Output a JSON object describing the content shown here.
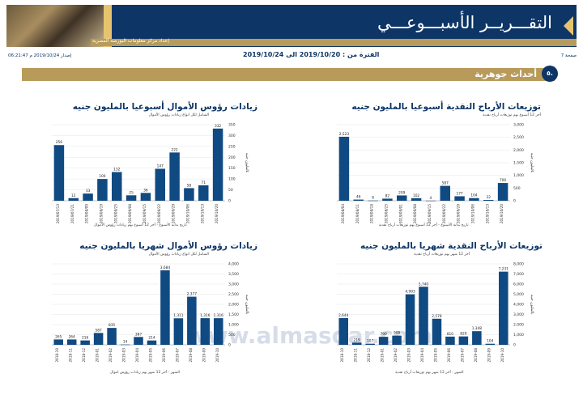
{
  "header": {
    "title": "التقـــريــر الأسبـــوعـــي",
    "subtitle": "إعداد مركز معلومات البورصة المصرية",
    "page_label": "صفحة 7",
    "period": "الفترة من : 2019/10/20 الى 2019/10/24",
    "issued": "إصدار 2019/10/24 م 06:21:47"
  },
  "section": {
    "number": "٥.",
    "title": "أحداث جوهرية"
  },
  "watermark": {
    "url": "www.almasdar.com"
  },
  "colors": {
    "navy": "#0d3566",
    "gold": "#b89b5a",
    "bar": "#104a82"
  },
  "chart_data": [
    {
      "id": "weekly-dividends",
      "type": "bar",
      "title": "توزيعات الأرباح النقدية أسبوعيا بالمليون جنيه",
      "subtitle": "آخر 12 أسبوع بهم توزيعات أرباح نقدية",
      "xlabel": "تاريخ بداية الأسبوع - آخر 12 أسبوع بهم توزيعات أرباح نقدية",
      "ylabel": "بالمليون جنيه",
      "ylim": [
        0,
        3000
      ],
      "yticks": [
        "0",
        "500",
        "1,000",
        "1,500",
        "2,000",
        "2,500",
        "3,000"
      ],
      "categories": [
        "2019/08/04",
        "2019/08/11",
        "2019/08/18",
        "2019/08/25",
        "2019/09/01",
        "2019/09/08",
        "2019/09/15",
        "2019/09/22",
        "2019/09/29",
        "2019/10/06",
        "2019/10/13",
        "2019/10/20"
      ],
      "values": [
        2523,
        46,
        8,
        82,
        209,
        102,
        4,
        587,
        177,
        104,
        32,
        700
      ],
      "labels": [
        "2,523",
        "46",
        "8",
        "82",
        "209",
        "102",
        "4",
        "587",
        "177",
        "104",
        "32",
        "700"
      ]
    },
    {
      "id": "weekly-capital",
      "type": "bar",
      "title": "زيادات رؤوس الأموال أسبوعيا بالمليون جنيه",
      "subtitle": "الشامل لكل انواع زيادات رؤوس الأموال",
      "xlabel": "تاريخ بداية الأسبوع - آخر 12 أسبوع بهم زيادات رؤوس الأموال",
      "ylabel": "بالمليون جنيه",
      "ylim": [
        0,
        350
      ],
      "yticks": [
        "0",
        "50",
        "100",
        "150",
        "200",
        "250",
        "300",
        "350"
      ],
      "categories": [
        "2019/07/13",
        "2019/07/21",
        "2019/08/09",
        "2019/08/19",
        "2019/08/25",
        "2019/09/08",
        "2019/09/15",
        "2019/09/22",
        "2019/09/29",
        "2019/10/06",
        "2019/10/13",
        "2019/10/20"
      ],
      "values": [
        256,
        12,
        33,
        100,
        132,
        25,
        36,
        147,
        222,
        58,
        71,
        332
      ],
      "labels": [
        "256",
        "12",
        "33",
        "100",
        "132",
        "25",
        "36",
        "147",
        "222",
        "58",
        "71",
        "332"
      ]
    },
    {
      "id": "monthly-dividends",
      "type": "bar",
      "title": "توزيعات الأرباح النقدية شهريا بالمليون جنيه",
      "subtitle": "آخر 12 شهر بهم توزيعات أرباح نقدية",
      "xlabel": "الشهر - آخر 12 شهر بهم توزيعات أرباح نقدية",
      "ylabel": "بالمليون جنيه",
      "ylim": [
        0,
        8000
      ],
      "yticks": [
        "0",
        "1,000",
        "2,000",
        "3,000",
        "4,000",
        "5,000",
        "6,000",
        "7,000",
        "8,000"
      ],
      "categories": [
        "2018-10",
        "2018-11",
        "2018-12",
        "2019-01",
        "2019-02",
        "2019-03",
        "2019-04",
        "2019-05",
        "2019-06",
        "2019-07",
        "2019-08",
        "2019-09",
        "2019-10"
      ],
      "values": [
        2644,
        219,
        107,
        790,
        908,
        4993,
        5740,
        2578,
        810,
        829,
        1348,
        104,
        7231
      ],
      "labels": [
        "2,644",
        "219",
        "107",
        "790",
        "908",
        "4,993",
        "5,740",
        "2,578",
        "810",
        "829",
        "1,348",
        "104",
        "7,231"
      ]
    },
    {
      "id": "monthly-capital",
      "type": "bar",
      "title": "زيادات رؤوس الأموال شهريا بالمليون جنيه",
      "subtitle": "الشامل لكل انواع زيادات رؤوس الأموال",
      "xlabel": "الشهر - آخر 12 شهر بهم زيادات رؤوس اموال",
      "ylabel": "بالمليون جنيه",
      "ylim": [
        0,
        4000
      ],
      "yticks": [
        "0",
        "500",
        "1,000",
        "1,500",
        "2,000",
        "2,500",
        "3,000",
        "3,500",
        "4,000"
      ],
      "categories": [
        "2018-10",
        "2018-11",
        "2018-12",
        "2019-01",
        "2019-02",
        "2019-03",
        "2019-04",
        "2019-05",
        "2019-06",
        "2019-07",
        "2019-08",
        "2019-09",
        "2019-10"
      ],
      "values": [
        265,
        264,
        216,
        587,
        835,
        14,
        387,
        214,
        3684,
        1311,
        2377,
        1316,
        1316
      ],
      "labels": [
        "265",
        "264",
        "216",
        "587",
        "835",
        "14",
        "387",
        "214",
        "3,684",
        "1,311",
        "2,377",
        "1,316",
        "1,316"
      ]
    }
  ]
}
